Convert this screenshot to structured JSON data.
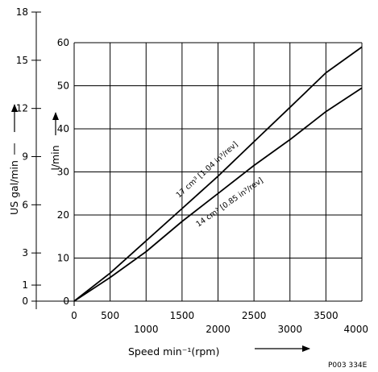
{
  "chart_data": {
    "type": "line",
    "xlabel": "Speed min⁻¹(rpm)",
    "ylabel": "l/min",
    "secondary_ylabel": "US gal/min",
    "x_ticks": [
      "0",
      "500",
      "1000",
      "1500",
      "2000",
      "2500",
      "3000",
      "3500",
      "4000"
    ],
    "y_ticks": [
      "0",
      "10",
      "20",
      "30",
      "40",
      "50",
      "60"
    ],
    "secondary_y_ticks": [
      "0",
      "1",
      "3",
      "6",
      "9",
      "12",
      "15",
      "18"
    ],
    "xlim": [
      0,
      4000
    ],
    "ylim": [
      0,
      60
    ],
    "secondary_ylim": [
      0,
      18
    ],
    "grid": true,
    "series": [
      {
        "name": "17 cm³ [1.04 in³/rev]",
        "x": [
          0,
          500,
          1000,
          1500,
          2000,
          2500,
          3000,
          3500,
          4000
        ],
        "y": [
          0,
          6.5,
          14,
          21.5,
          29,
          37,
          45,
          53,
          59
        ]
      },
      {
        "name": "14 cm³ [0.85 in³/rev]",
        "x": [
          0,
          500,
          1000,
          1500,
          2000,
          2500,
          3000,
          3500,
          4000
        ],
        "y": [
          0,
          5.5,
          11.5,
          18.5,
          25,
          31.5,
          37.5,
          44,
          49.5
        ]
      }
    ],
    "figure_id": "P003 334E"
  }
}
